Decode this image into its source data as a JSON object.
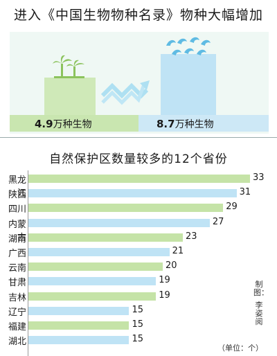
{
  "page": {
    "title": "进入《中国生物物种名录》物种大幅增加",
    "chart_title": "自然保护区数量较多的12个省份",
    "credit_label": "制图：",
    "credit_name": "李姿阅",
    "unit": "（单位：个）"
  },
  "comparison": {
    "before": {
      "value": "4.9",
      "unit": "万种生物"
    },
    "after": {
      "value": "8.7",
      "unit": "万种生物"
    },
    "colors": {
      "before": "#cfe9b8",
      "after": "#bfe3f5"
    }
  },
  "chart_data": {
    "type": "bar",
    "orientation": "horizontal",
    "title": "自然保护区数量较多的12个省份",
    "xlabel": "",
    "ylabel": "",
    "unit": "（单位：个）",
    "categories": [
      "黑龙江",
      "陕西",
      "四川",
      "内蒙古",
      "湖南",
      "广西",
      "云南",
      "甘肃",
      "吉林",
      "辽宁",
      "福建",
      "湖北"
    ],
    "values": [
      33,
      31,
      29,
      27,
      23,
      21,
      20,
      19,
      19,
      15,
      15,
      15
    ],
    "colors": [
      "#c5e3a7",
      "#bfe3f5"
    ],
    "xlim": [
      0,
      33
    ],
    "grid": false,
    "legend": "none"
  }
}
